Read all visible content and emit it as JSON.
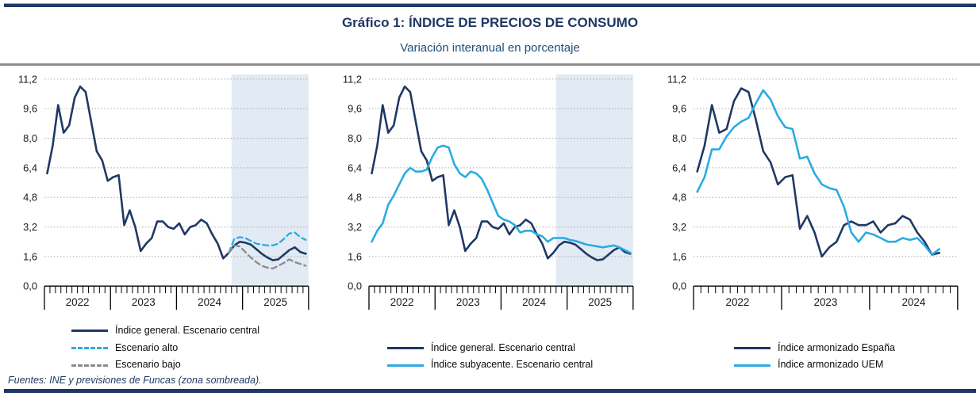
{
  "header": {
    "title": "Gráfico 1: ÍNDICE DE PRECIOS DE CONSUMO",
    "subtitle": "Variación interanual en porcentaje"
  },
  "footer": {
    "source": "Fuentes: INE y previsiones de Funcas (zona sombreada)."
  },
  "colors": {
    "navy": "#1f3864",
    "cyan": "#29abe2",
    "gray": "#8c8c8c",
    "shaded": "#e2eaf4",
    "grid": "#aaaaaa",
    "axis": "#000000",
    "tick_text": "#1a1a1a"
  },
  "chart_data": [
    {
      "type": "line",
      "name": "ipc-general-escenarios",
      "ylim": [
        0,
        11.2
      ],
      "ytick_values": [
        0,
        1.6,
        3.2,
        4.8,
        6.4,
        8.0,
        9.6,
        11.2
      ],
      "ytick_labels": [
        "0,0",
        "1,6",
        "3,2",
        "4,8",
        "6,4",
        "8,0",
        "9,6",
        "11,2"
      ],
      "years": [
        "2022",
        "2023",
        "2024",
        "2025"
      ],
      "months_total": 48,
      "x_start": "2022-01",
      "x_end": "2025-12",
      "grid": "dotted",
      "shaded_from_month": 34,
      "shaded_meaning": "previsiones de Funcas",
      "series": [
        {
          "name": "Índice general. Escenario central",
          "color_key": "navy",
          "style": "solid",
          "start_month": 0,
          "values": [
            6.1,
            7.6,
            9.8,
            8.3,
            8.7,
            10.2,
            10.8,
            10.5,
            8.9,
            7.3,
            6.8,
            5.7,
            5.9,
            6.0,
            3.3,
            4.1,
            3.2,
            1.9,
            2.3,
            2.6,
            3.5,
            3.5,
            3.2,
            3.1,
            3.4,
            2.8,
            3.2,
            3.3,
            3.6,
            3.4,
            2.8,
            2.3,
            1.5,
            1.8,
            2.2,
            2.4,
            2.35,
            2.25,
            2.0,
            1.75,
            1.55,
            1.4,
            1.45,
            1.7,
            1.95,
            2.1,
            1.85,
            1.75
          ]
        },
        {
          "name": "Escenario alto",
          "color_key": "cyan",
          "style": "dashed",
          "start_month": 33,
          "values": [
            1.8,
            2.55,
            2.65,
            2.6,
            2.45,
            2.3,
            2.25,
            2.2,
            2.2,
            2.3,
            2.55,
            2.85,
            2.9,
            2.65,
            2.5
          ]
        },
        {
          "name": "Escenario bajo",
          "color_key": "gray",
          "style": "dashed",
          "start_month": 33,
          "values": [
            1.8,
            2.2,
            2.15,
            1.85,
            1.55,
            1.3,
            1.1,
            1.0,
            0.95,
            1.1,
            1.25,
            1.45,
            1.3,
            1.2,
            1.1
          ]
        }
      ]
    },
    {
      "type": "line",
      "name": "ipc-general-vs-subyacente",
      "ylim": [
        0,
        11.2
      ],
      "ytick_values": [
        0,
        1.6,
        3.2,
        4.8,
        6.4,
        8.0,
        9.6,
        11.2
      ],
      "ytick_labels": [
        "0,0",
        "1,6",
        "3,2",
        "4,8",
        "6,4",
        "8,0",
        "9,6",
        "11,2"
      ],
      "years": [
        "2022",
        "2023",
        "2024",
        "2025"
      ],
      "months_total": 48,
      "x_start": "2022-01",
      "x_end": "2025-12",
      "grid": "dotted",
      "shaded_from_month": 34,
      "shaded_meaning": "previsiones de Funcas",
      "series": [
        {
          "name": "Índice general. Escenario central",
          "color_key": "navy",
          "style": "solid",
          "start_month": 0,
          "values": [
            6.1,
            7.6,
            9.8,
            8.3,
            8.7,
            10.2,
            10.8,
            10.5,
            8.9,
            7.3,
            6.8,
            5.7,
            5.9,
            6.0,
            3.3,
            4.1,
            3.2,
            1.9,
            2.3,
            2.6,
            3.5,
            3.5,
            3.2,
            3.1,
            3.4,
            2.8,
            3.2,
            3.3,
            3.6,
            3.4,
            2.8,
            2.3,
            1.5,
            1.8,
            2.2,
            2.4,
            2.35,
            2.25,
            2.0,
            1.75,
            1.55,
            1.4,
            1.45,
            1.7,
            1.95,
            2.1,
            1.85,
            1.75
          ]
        },
        {
          "name": "Índice subyacente. Escenario central",
          "color_key": "cyan",
          "style": "solid",
          "start_month": 0,
          "values": [
            2.4,
            3.0,
            3.4,
            4.4,
            4.9,
            5.5,
            6.1,
            6.4,
            6.2,
            6.2,
            6.3,
            7.0,
            7.5,
            7.6,
            7.5,
            6.6,
            6.1,
            5.9,
            6.2,
            6.1,
            5.8,
            5.2,
            4.5,
            3.8,
            3.6,
            3.5,
            3.3,
            2.9,
            3.0,
            3.0,
            2.8,
            2.7,
            2.4,
            2.6,
            2.6,
            2.6,
            2.5,
            2.45,
            2.35,
            2.25,
            2.2,
            2.15,
            2.1,
            2.15,
            2.2,
            2.1,
            1.95,
            1.8
          ]
        }
      ]
    },
    {
      "type": "line",
      "name": "ipc-armonizado-espana-uem",
      "ylim": [
        0,
        11.2
      ],
      "ytick_values": [
        0,
        1.6,
        3.2,
        4.8,
        6.4,
        8.0,
        9.6,
        11.2
      ],
      "ytick_labels": [
        "0,0",
        "1,6",
        "3,2",
        "4,8",
        "6,4",
        "8,0",
        "9,6",
        "11,2"
      ],
      "years": [
        "2022",
        "2023",
        "2024"
      ],
      "months_total": 36,
      "x_start": "2022-01",
      "x_end": "2024-12",
      "grid": "dotted",
      "shaded_from_month": null,
      "series": [
        {
          "name": "Índice armonizado España",
          "color_key": "navy",
          "style": "solid",
          "start_month": 0,
          "values": [
            6.2,
            7.6,
            9.8,
            8.3,
            8.5,
            10.0,
            10.7,
            10.5,
            9.0,
            7.3,
            6.7,
            5.5,
            5.9,
            6.0,
            3.1,
            3.8,
            2.9,
            1.6,
            2.1,
            2.4,
            3.3,
            3.5,
            3.3,
            3.3,
            3.5,
            2.9,
            3.3,
            3.4,
            3.8,
            3.6,
            2.9,
            2.4,
            1.7,
            1.8
          ]
        },
        {
          "name": "Índice armonizado UEM",
          "color_key": "cyan",
          "style": "solid",
          "start_month": 0,
          "values": [
            5.1,
            5.9,
            7.4,
            7.4,
            8.1,
            8.6,
            8.9,
            9.1,
            9.9,
            10.6,
            10.1,
            9.2,
            8.6,
            8.5,
            6.9,
            7.0,
            6.1,
            5.5,
            5.3,
            5.2,
            4.3,
            2.9,
            2.4,
            2.9,
            2.8,
            2.6,
            2.4,
            2.4,
            2.6,
            2.5,
            2.6,
            2.2,
            1.7,
            2.0
          ]
        }
      ]
    }
  ]
}
